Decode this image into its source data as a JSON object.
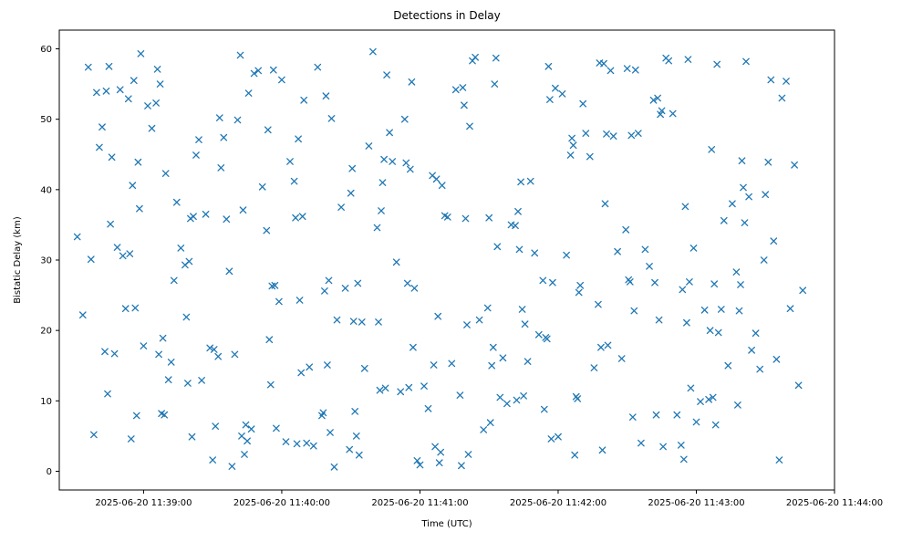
{
  "figure": {
    "background": "#ffffff",
    "axes_edge_color": "#000000"
  },
  "chart_data": {
    "type": "scatter",
    "title": "Detections in Delay",
    "xlabel": "Time (UTC)",
    "ylabel": "Bistatic Delay (km)",
    "marker": "x",
    "marker_color": "#1f77b4",
    "x_unit": "minutes after 2025-06-20 11:38:00 UTC",
    "xlim": [
      0.39,
      6.0
    ],
    "ylim": [
      -2.66,
      62.66
    ],
    "grid": false,
    "legend": "none",
    "x_ticks": {
      "values": [
        1,
        2,
        3,
        4,
        5,
        6
      ],
      "labels": [
        "2025-06-20 11:39:00",
        "2025-06-20 11:40:00",
        "2025-06-20 11:41:00",
        "2025-06-20 11:42:00",
        "2025-06-20 11:43:00",
        "2025-06-20 11:44:00"
      ]
    },
    "y_ticks": {
      "values": [
        0,
        10,
        20,
        30,
        40,
        50,
        60
      ],
      "labels": [
        "0",
        "10",
        "20",
        "30",
        "40",
        "50",
        "60"
      ]
    },
    "points": [
      [
        0.52,
        33.3
      ],
      [
        0.56,
        22.2
      ],
      [
        0.6,
        57.4
      ],
      [
        0.62,
        30.1
      ],
      [
        0.64,
        5.2
      ],
      [
        0.66,
        53.8
      ],
      [
        0.68,
        46.0
      ],
      [
        0.7,
        48.9
      ],
      [
        0.72,
        17.0
      ],
      [
        0.73,
        54.0
      ],
      [
        0.74,
        11.0
      ],
      [
        0.75,
        57.5
      ],
      [
        0.76,
        35.1
      ],
      [
        0.77,
        44.6
      ],
      [
        0.79,
        16.7
      ],
      [
        0.81,
        31.8
      ],
      [
        0.83,
        54.2
      ],
      [
        0.85,
        30.6
      ],
      [
        0.87,
        23.1
      ],
      [
        0.89,
        52.9
      ],
      [
        0.9,
        30.9
      ],
      [
        0.91,
        4.6
      ],
      [
        0.92,
        40.6
      ],
      [
        0.93,
        55.5
      ],
      [
        0.94,
        23.2
      ],
      [
        0.95,
        7.9
      ],
      [
        0.96,
        43.9
      ],
      [
        0.97,
        37.3
      ],
      [
        0.98,
        59.3
      ],
      [
        1.0,
        17.8
      ],
      [
        1.03,
        51.9
      ],
      [
        1.06,
        48.7
      ],
      [
        1.09,
        52.3
      ],
      [
        1.1,
        57.1
      ],
      [
        1.11,
        16.6
      ],
      [
        1.12,
        55.0
      ],
      [
        1.13,
        8.2
      ],
      [
        1.14,
        18.9
      ],
      [
        1.15,
        8.0
      ],
      [
        1.16,
        42.3
      ],
      [
        1.18,
        13.0
      ],
      [
        1.2,
        15.5
      ],
      [
        1.22,
        27.1
      ],
      [
        1.24,
        38.2
      ],
      [
        1.27,
        31.7
      ],
      [
        1.3,
        29.3
      ],
      [
        1.31,
        21.9
      ],
      [
        1.32,
        12.5
      ],
      [
        1.33,
        29.8
      ],
      [
        1.34,
        35.9
      ],
      [
        1.35,
        4.9
      ],
      [
        1.36,
        36.2
      ],
      [
        1.38,
        44.9
      ],
      [
        1.4,
        47.1
      ],
      [
        1.42,
        12.9
      ],
      [
        1.45,
        36.5
      ],
      [
        1.48,
        17.5
      ],
      [
        1.5,
        1.6
      ],
      [
        1.51,
        17.3
      ],
      [
        1.52,
        6.4
      ],
      [
        1.54,
        16.3
      ],
      [
        1.55,
        50.2
      ],
      [
        1.56,
        43.1
      ],
      [
        1.58,
        47.4
      ],
      [
        1.6,
        35.8
      ],
      [
        1.62,
        28.4
      ],
      [
        1.64,
        0.7
      ],
      [
        1.66,
        16.6
      ],
      [
        1.68,
        49.9
      ],
      [
        1.7,
        59.1
      ],
      [
        1.71,
        5.0
      ],
      [
        1.72,
        37.1
      ],
      [
        1.73,
        2.4
      ],
      [
        1.74,
        6.6
      ],
      [
        1.75,
        4.3
      ],
      [
        1.76,
        53.7
      ],
      [
        1.78,
        6.0
      ],
      [
        1.8,
        56.5
      ],
      [
        1.83,
        56.9
      ],
      [
        1.86,
        40.4
      ],
      [
        1.89,
        34.2
      ],
      [
        1.9,
        48.5
      ],
      [
        1.91,
        18.7
      ],
      [
        1.92,
        12.3
      ],
      [
        1.93,
        26.3
      ],
      [
        1.94,
        57.0
      ],
      [
        1.95,
        26.4
      ],
      [
        1.96,
        6.1
      ],
      [
        1.98,
        24.1
      ],
      [
        2.0,
        55.6
      ],
      [
        2.03,
        4.2
      ],
      [
        2.06,
        44.0
      ],
      [
        2.09,
        41.2
      ],
      [
        2.1,
        36.0
      ],
      [
        2.11,
        3.9
      ],
      [
        2.12,
        47.2
      ],
      [
        2.13,
        24.3
      ],
      [
        2.14,
        14.0
      ],
      [
        2.15,
        36.2
      ],
      [
        2.16,
        52.7
      ],
      [
        2.18,
        4.0
      ],
      [
        2.2,
        14.8
      ],
      [
        2.23,
        3.6
      ],
      [
        2.26,
        57.4
      ],
      [
        2.29,
        7.9
      ],
      [
        2.3,
        8.3
      ],
      [
        2.31,
        25.6
      ],
      [
        2.32,
        53.3
      ],
      [
        2.33,
        15.1
      ],
      [
        2.34,
        27.1
      ],
      [
        2.35,
        5.5
      ],
      [
        2.36,
        50.1
      ],
      [
        2.38,
        0.6
      ],
      [
        2.4,
        21.5
      ],
      [
        2.43,
        37.5
      ],
      [
        2.46,
        26.0
      ],
      [
        2.49,
        3.1
      ],
      [
        2.5,
        39.5
      ],
      [
        2.51,
        43.0
      ],
      [
        2.52,
        21.3
      ],
      [
        2.53,
        8.5
      ],
      [
        2.54,
        5.0
      ],
      [
        2.55,
        26.7
      ],
      [
        2.56,
        2.3
      ],
      [
        2.58,
        21.2
      ],
      [
        2.6,
        14.6
      ],
      [
        2.63,
        46.2
      ],
      [
        2.66,
        59.6
      ],
      [
        2.69,
        34.6
      ],
      [
        2.7,
        21.2
      ],
      [
        2.71,
        11.5
      ],
      [
        2.72,
        37.0
      ],
      [
        2.73,
        41.0
      ],
      [
        2.74,
        44.3
      ],
      [
        2.75,
        11.8
      ],
      [
        2.76,
        56.3
      ],
      [
        2.78,
        48.1
      ],
      [
        2.8,
        44.0
      ],
      [
        2.83,
        29.7
      ],
      [
        2.86,
        11.3
      ],
      [
        2.89,
        50.0
      ],
      [
        2.9,
        43.8
      ],
      [
        2.91,
        26.7
      ],
      [
        2.92,
        11.9
      ],
      [
        2.93,
        42.9
      ],
      [
        2.94,
        55.3
      ],
      [
        2.95,
        17.6
      ],
      [
        2.96,
        26.0
      ],
      [
        2.98,
        1.5
      ],
      [
        3.0,
        0.9
      ],
      [
        3.03,
        12.1
      ],
      [
        3.06,
        8.9
      ],
      [
        3.09,
        42.0
      ],
      [
        3.1,
        15.1
      ],
      [
        3.11,
        3.5
      ],
      [
        3.12,
        41.5
      ],
      [
        3.13,
        22.0
      ],
      [
        3.14,
        1.2
      ],
      [
        3.15,
        2.7
      ],
      [
        3.16,
        40.6
      ],
      [
        3.18,
        36.3
      ],
      [
        3.2,
        36.1
      ],
      [
        3.23,
        15.3
      ],
      [
        3.26,
        54.2
      ],
      [
        3.29,
        10.8
      ],
      [
        3.3,
        0.8
      ],
      [
        3.31,
        54.5
      ],
      [
        3.32,
        52.0
      ],
      [
        3.33,
        35.9
      ],
      [
        3.34,
        20.8
      ],
      [
        3.35,
        2.4
      ],
      [
        3.36,
        49.0
      ],
      [
        3.38,
        58.3
      ],
      [
        3.4,
        58.8
      ],
      [
        3.43,
        21.5
      ],
      [
        3.46,
        5.9
      ],
      [
        3.49,
        23.2
      ],
      [
        3.5,
        36.0
      ],
      [
        3.51,
        6.9
      ],
      [
        3.52,
        15.0
      ],
      [
        3.53,
        17.6
      ],
      [
        3.54,
        55.0
      ],
      [
        3.55,
        58.7
      ],
      [
        3.56,
        31.9
      ],
      [
        3.58,
        10.5
      ],
      [
        3.6,
        16.1
      ],
      [
        3.63,
        9.6
      ],
      [
        3.66,
        35.0
      ],
      [
        3.69,
        34.9
      ],
      [
        3.7,
        10.1
      ],
      [
        3.71,
        36.9
      ],
      [
        3.72,
        31.5
      ],
      [
        3.73,
        41.1
      ],
      [
        3.74,
        23.0
      ],
      [
        3.75,
        10.7
      ],
      [
        3.76,
        20.9
      ],
      [
        3.78,
        15.6
      ],
      [
        3.8,
        41.2
      ],
      [
        3.83,
        31.0
      ],
      [
        3.86,
        19.4
      ],
      [
        3.89,
        27.1
      ],
      [
        3.9,
        8.8
      ],
      [
        3.91,
        19.0
      ],
      [
        3.92,
        18.8
      ],
      [
        3.93,
        57.5
      ],
      [
        3.94,
        52.8
      ],
      [
        3.95,
        4.6
      ],
      [
        3.96,
        26.8
      ],
      [
        3.98,
        54.4
      ],
      [
        4.0,
        4.9
      ],
      [
        4.03,
        53.6
      ],
      [
        4.06,
        30.7
      ],
      [
        4.09,
        44.9
      ],
      [
        4.1,
        47.3
      ],
      [
        4.11,
        46.3
      ],
      [
        4.12,
        2.3
      ],
      [
        4.13,
        10.6
      ],
      [
        4.14,
        10.3
      ],
      [
        4.15,
        25.4
      ],
      [
        4.16,
        26.4
      ],
      [
        4.18,
        52.2
      ],
      [
        4.2,
        48.0
      ],
      [
        4.23,
        44.7
      ],
      [
        4.26,
        14.7
      ],
      [
        4.29,
        23.7
      ],
      [
        4.3,
        58.0
      ],
      [
        4.31,
        17.6
      ],
      [
        4.32,
        3.0
      ],
      [
        4.33,
        57.9
      ],
      [
        4.34,
        38.0
      ],
      [
        4.35,
        47.9
      ],
      [
        4.36,
        17.9
      ],
      [
        4.38,
        56.9
      ],
      [
        4.4,
        47.6
      ],
      [
        4.43,
        31.2
      ],
      [
        4.46,
        16.0
      ],
      [
        4.49,
        34.3
      ],
      [
        4.5,
        57.2
      ],
      [
        4.51,
        27.2
      ],
      [
        4.52,
        26.9
      ],
      [
        4.53,
        47.7
      ],
      [
        4.54,
        7.7
      ],
      [
        4.55,
        22.8
      ],
      [
        4.56,
        57.0
      ],
      [
        4.58,
        48.0
      ],
      [
        4.6,
        4.0
      ],
      [
        4.63,
        31.5
      ],
      [
        4.66,
        29.1
      ],
      [
        4.69,
        52.7
      ],
      [
        4.7,
        26.8
      ],
      [
        4.71,
        8.0
      ],
      [
        4.72,
        53.0
      ],
      [
        4.73,
        21.5
      ],
      [
        4.74,
        50.7
      ],
      [
        4.75,
        51.2
      ],
      [
        4.76,
        3.5
      ],
      [
        4.78,
        58.7
      ],
      [
        4.8,
        58.3
      ],
      [
        4.83,
        50.8
      ],
      [
        4.86,
        8.0
      ],
      [
        4.89,
        3.7
      ],
      [
        4.9,
        25.8
      ],
      [
        4.91,
        1.7
      ],
      [
        4.92,
        37.6
      ],
      [
        4.93,
        21.1
      ],
      [
        4.94,
        58.5
      ],
      [
        4.95,
        26.9
      ],
      [
        4.96,
        11.8
      ],
      [
        4.98,
        31.7
      ],
      [
        5.0,
        7.0
      ],
      [
        5.03,
        9.9
      ],
      [
        5.06,
        22.9
      ],
      [
        5.09,
        10.2
      ],
      [
        5.1,
        20.0
      ],
      [
        5.11,
        45.7
      ],
      [
        5.12,
        10.5
      ],
      [
        5.13,
        26.6
      ],
      [
        5.14,
        6.6
      ],
      [
        5.15,
        57.8
      ],
      [
        5.16,
        19.7
      ],
      [
        5.18,
        23.0
      ],
      [
        5.2,
        35.6
      ],
      [
        5.23,
        15.0
      ],
      [
        5.26,
        38.0
      ],
      [
        5.29,
        28.3
      ],
      [
        5.3,
        9.4
      ],
      [
        5.31,
        22.8
      ],
      [
        5.32,
        26.5
      ],
      [
        5.33,
        44.1
      ],
      [
        5.34,
        40.3
      ],
      [
        5.35,
        35.3
      ],
      [
        5.36,
        58.2
      ],
      [
        5.38,
        39.0
      ],
      [
        5.4,
        17.2
      ],
      [
        5.43,
        19.6
      ],
      [
        5.46,
        14.5
      ],
      [
        5.49,
        30.0
      ],
      [
        5.5,
        39.3
      ],
      [
        5.52,
        43.9
      ],
      [
        5.54,
        55.6
      ],
      [
        5.56,
        32.7
      ],
      [
        5.58,
        15.9
      ],
      [
        5.6,
        1.6
      ],
      [
        5.62,
        53.0
      ],
      [
        5.65,
        55.4
      ],
      [
        5.68,
        23.1
      ],
      [
        5.71,
        43.5
      ],
      [
        5.74,
        12.2
      ],
      [
        5.77,
        25.7
      ]
    ]
  }
}
